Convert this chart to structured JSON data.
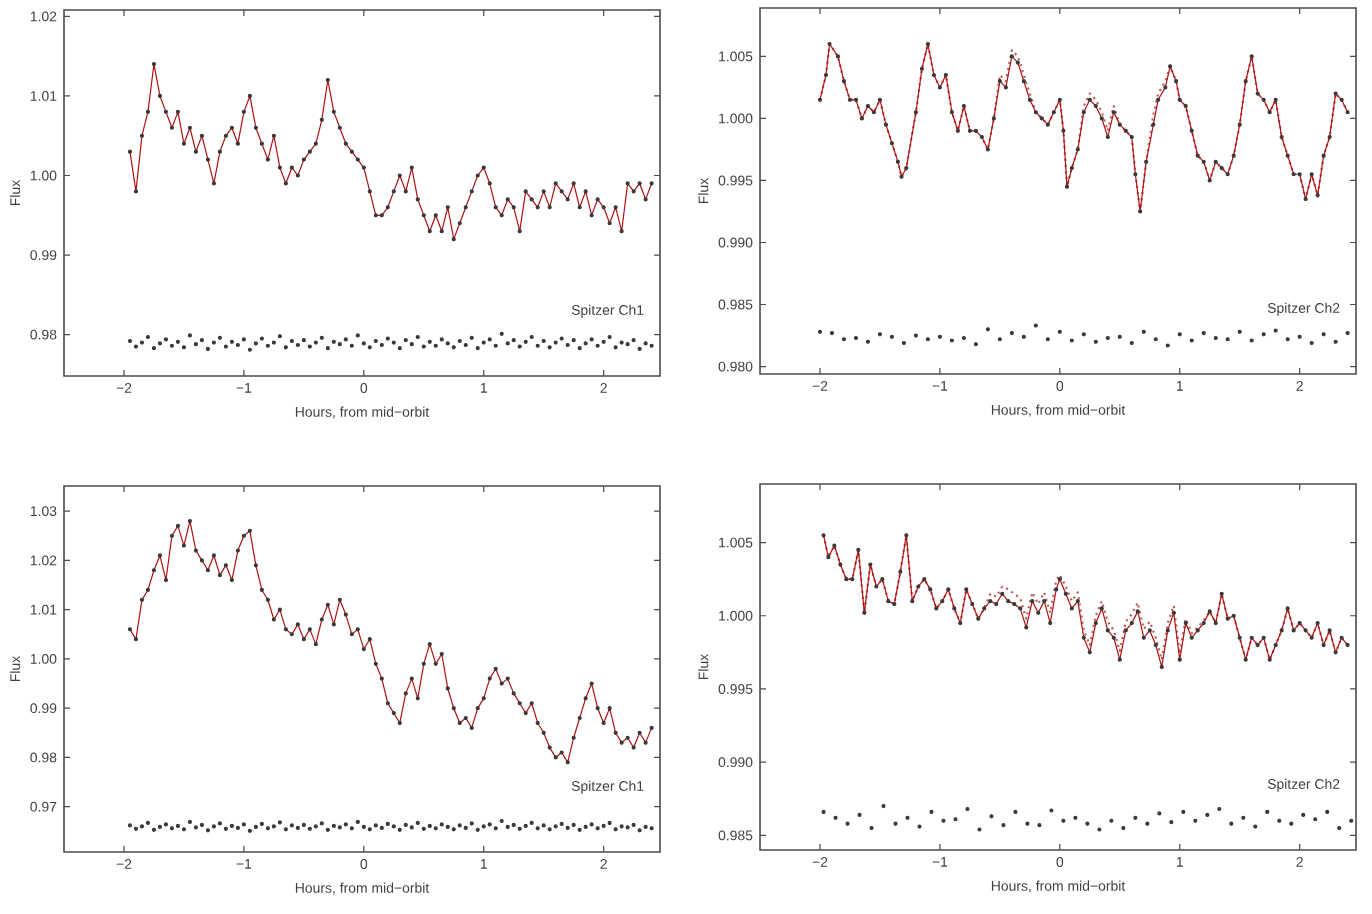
{
  "chart_data": [
    {
      "type": "scatter",
      "xlabel": "Hours, from mid−orbit",
      "ylabel": "Flux",
      "marker": "circle",
      "xlim": [
        -2.5,
        2.47
      ],
      "ylim": [
        0.9748,
        1.0208
      ],
      "xticks": [
        {
          "value": -2,
          "label": "−2"
        },
        {
          "value": -1,
          "label": "−1"
        },
        {
          "value": 0,
          "label": "0"
        },
        {
          "value": 1,
          "label": "1"
        },
        {
          "value": 2,
          "label": "2"
        }
      ],
      "yticks": [
        {
          "value": 0.98,
          "label": "0.98"
        },
        {
          "value": 0.99,
          "label": "0.99"
        },
        {
          "value": 1.0,
          "label": "1.00"
        },
        {
          "value": 1.01,
          "label": "1.01"
        },
        {
          "value": 1.02,
          "label": "1.02"
        }
      ],
      "annotations": [
        "Spitzer Ch1"
      ],
      "x": [
        -1.95,
        -1.9,
        -1.85,
        -1.8,
        -1.75,
        -1.7,
        -1.65,
        -1.6,
        -1.55,
        -1.5,
        -1.45,
        -1.4,
        -1.35,
        -1.3,
        -1.25,
        -1.2,
        -1.15,
        -1.1,
        -1.05,
        -1.0,
        -0.95,
        -0.9,
        -0.85,
        -0.8,
        -0.75,
        -0.7,
        -0.65,
        -0.6,
        -0.55,
        -0.5,
        -0.45,
        -0.4,
        -0.35,
        -0.3,
        -0.25,
        -0.2,
        -0.15,
        -0.1,
        -0.05,
        0.0,
        0.05,
        0.1,
        0.15,
        0.2,
        0.25,
        0.3,
        0.35,
        0.4,
        0.45,
        0.5,
        0.55,
        0.6,
        0.65,
        0.7,
        0.75,
        0.8,
        0.85,
        0.9,
        0.95,
        1.0,
        1.05,
        1.1,
        1.15,
        1.2,
        1.25,
        1.3,
        1.35,
        1.4,
        1.45,
        1.5,
        1.55,
        1.6,
        1.65,
        1.7,
        1.75,
        1.8,
        1.85,
        1.9,
        1.95,
        2.0,
        2.05,
        2.1,
        2.15,
        2.2,
        2.25,
        2.3,
        2.35,
        2.4
      ],
      "series": [
        {
          "type": "scatter",
          "color": "#3a3a3a",
          "values": [
            1.003,
            0.998,
            1.005,
            1.008,
            1.014,
            1.01,
            1.008,
            1.006,
            1.008,
            1.004,
            1.006,
            1.003,
            1.005,
            1.002,
            0.999,
            1.003,
            1.005,
            1.006,
            1.004,
            1.008,
            1.01,
            1.006,
            1.004,
            1.002,
            1.005,
            1.001,
            0.999,
            1.001,
            1.0,
            1.002,
            1.003,
            1.004,
            1.007,
            1.012,
            1.008,
            1.006,
            1.004,
            1.003,
            1.002,
            1.001,
            0.998,
            0.995,
            0.995,
            0.996,
            0.998,
            1.0,
            0.998,
            1.001,
            0.997,
            0.995,
            0.993,
            0.995,
            0.993,
            0.996,
            0.992,
            0.994,
            0.996,
            0.998,
            1.0,
            1.001,
            0.999,
            0.996,
            0.995,
            0.997,
            0.996,
            0.993,
            0.998,
            0.997,
            0.996,
            0.998,
            0.996,
            0.999,
            0.998,
            0.997,
            0.999,
            0.996,
            0.998,
            0.995,
            0.997,
            0.996,
            0.994,
            0.996,
            0.993,
            0.999,
            0.998,
            0.999,
            0.997,
            0.999
          ]
        },
        {
          "type": "line",
          "marker": "none",
          "color": "#b01010",
          "values": [
            1.003,
            0.998,
            1.005,
            1.008,
            1.014,
            1.01,
            1.008,
            1.006,
            1.008,
            1.004,
            1.006,
            1.003,
            1.005,
            1.002,
            0.999,
            1.003,
            1.005,
            1.006,
            1.004,
            1.008,
            1.01,
            1.006,
            1.004,
            1.002,
            1.005,
            1.001,
            0.999,
            1.001,
            1.0,
            1.002,
            1.003,
            1.004,
            1.007,
            1.012,
            1.008,
            1.006,
            1.004,
            1.003,
            1.002,
            1.001,
            0.998,
            0.995,
            0.995,
            0.996,
            0.998,
            1.0,
            0.998,
            1.001,
            0.997,
            0.995,
            0.993,
            0.995,
            0.993,
            0.996,
            0.992,
            0.994,
            0.996,
            0.998,
            1.0,
            1.001,
            0.999,
            0.996,
            0.995,
            0.997,
            0.996,
            0.993,
            0.998,
            0.997,
            0.996,
            0.998,
            0.996,
            0.999,
            0.998,
            0.997,
            0.999,
            0.996,
            0.998,
            0.995,
            0.997,
            0.996,
            0.994,
            0.996,
            0.993,
            0.999,
            0.998,
            0.999,
            0.997,
            0.999
          ]
        },
        {
          "type": "scatter",
          "color": "#3a3a3a",
          "values": [
            0.9792,
            0.9785,
            0.979,
            0.9797,
            0.9783,
            0.9789,
            0.9794,
            0.9786,
            0.9791,
            0.9784,
            0.9799,
            0.9788,
            0.9793,
            0.9782,
            0.979,
            0.9796,
            0.9785,
            0.9791,
            0.9787,
            0.9794,
            0.9781,
            0.9789,
            0.9795,
            0.9786,
            0.979,
            0.9798,
            0.9784,
            0.9792,
            0.9787,
            0.9793,
            0.9785,
            0.979,
            0.9796,
            0.9783,
            0.9791,
            0.9788,
            0.9794,
            0.9786,
            0.9799,
            0.9789,
            0.9784,
            0.9792,
            0.9787,
            0.9795,
            0.979,
            0.9783,
            0.9793,
            0.9788,
            0.9797,
            0.9785,
            0.9791,
            0.9786,
            0.9794,
            0.9789,
            0.9784,
            0.9792,
            0.9787,
            0.9796,
            0.9783,
            0.979,
            0.9794,
            0.9786,
            0.9801,
            0.9789,
            0.9793,
            0.9785,
            0.9791,
            0.9797,
            0.9786,
            0.9792,
            0.9784,
            0.979,
            0.9795,
            0.9787,
            0.9793,
            0.9783,
            0.9789,
            0.9794,
            0.9786,
            0.9791,
            0.9797,
            0.9784,
            0.979,
            0.9788,
            0.9793,
            0.9782,
            0.9789,
            0.9786
          ]
        }
      ]
    },
    {
      "type": "scatter",
      "xlabel": "Hours, from mid−orbit",
      "ylabel": "Flux",
      "marker": "circle",
      "xlim": [
        -2.5,
        2.47
      ],
      "ylim": [
        0.9794,
        1.0089
      ],
      "xticks": [
        {
          "value": -2,
          "label": "−2"
        },
        {
          "value": -1,
          "label": "−1"
        },
        {
          "value": 0,
          "label": "0"
        },
        {
          "value": 1,
          "label": "1"
        },
        {
          "value": 2,
          "label": "2"
        }
      ],
      "yticks": [
        {
          "value": 0.98,
          "label": "0.980"
        },
        {
          "value": 0.985,
          "label": "0.985"
        },
        {
          "value": 0.99,
          "label": "0.990"
        },
        {
          "value": 0.995,
          "label": "0.995"
        },
        {
          "value": 1.0,
          "label": "1.000"
        },
        {
          "value": 1.005,
          "label": "1.005"
        }
      ],
      "annotations": [
        "Spitzer Ch2"
      ],
      "x": [
        -2.0,
        -1.95,
        -1.92,
        -1.85,
        -1.8,
        -1.75,
        -1.7,
        -1.65,
        -1.6,
        -1.55,
        -1.5,
        -1.45,
        -1.4,
        -1.35,
        -1.32,
        -1.28,
        -1.2,
        -1.15,
        -1.1,
        -1.05,
        -1.0,
        -0.95,
        -0.9,
        -0.85,
        -0.8,
        -0.75,
        -0.7,
        -0.65,
        -0.6,
        -0.55,
        -0.5,
        -0.45,
        -0.4,
        -0.35,
        -0.3,
        -0.25,
        -0.2,
        -0.15,
        -0.1,
        -0.05,
        0.0,
        0.03,
        0.06,
        0.1,
        0.15,
        0.2,
        0.25,
        0.3,
        0.35,
        0.4,
        0.45,
        0.5,
        0.55,
        0.6,
        0.63,
        0.67,
        0.72,
        0.78,
        0.82,
        0.88,
        0.92,
        0.97,
        1.0,
        1.05,
        1.1,
        1.15,
        1.2,
        1.25,
        1.3,
        1.35,
        1.4,
        1.45,
        1.5,
        1.55,
        1.6,
        1.65,
        1.7,
        1.75,
        1.8,
        1.85,
        1.9,
        1.95,
        2.0,
        2.05,
        2.1,
        2.15,
        2.2,
        2.25,
        2.3,
        2.35,
        2.4
      ],
      "series": [
        {
          "type": "line",
          "marker": "none",
          "line_style": "dotted",
          "color": "#c06060",
          "values": [
            1.0015,
            1.0035,
            1.006,
            1.005,
            1.003,
            1.0015,
            1.0015,
            1.0,
            1.001,
            1.0005,
            1.0015,
            0.9995,
            0.998,
            0.9965,
            0.9953,
            0.996,
            1.0005,
            1.004,
            1.006,
            1.0035,
            1.0025,
            1.0035,
            1.0005,
            0.999,
            1.001,
            0.999,
            0.999,
            0.9985,
            0.9975,
            1.0,
            1.0035,
            1.003,
            1.0055,
            1.005,
            1.0035,
            1.002,
            1.0005,
            1.0,
            0.9995,
            1.0005,
            1.0015,
            0.999,
            0.9945,
            0.996,
            0.9975,
            1.001,
            1.002,
            1.0015,
            1.0005,
            0.999,
            1.001,
            0.9995,
            0.999,
            0.9985,
            0.9955,
            0.9925,
            0.9965,
            1.0003,
            1.002,
            1.003,
            1.0042,
            1.003,
            1.0015,
            1.001,
            0.999,
            0.997,
            0.9965,
            0.995,
            0.9965,
            0.996,
            0.9955,
            0.997,
            0.9995,
            1.003,
            1.005,
            1.002,
            1.0015,
            1.0005,
            1.0015,
            0.9985,
            0.997,
            0.9955,
            0.9955,
            0.9935,
            0.9955,
            0.9938,
            0.997,
            0.9985,
            1.002,
            1.0015,
            1.0005
          ]
        },
        {
          "type": "scatter",
          "color": "#3a3a3a",
          "values": [
            1.0015,
            1.0035,
            1.006,
            1.005,
            1.003,
            1.0015,
            1.0015,
            1.0,
            1.001,
            1.0005,
            1.0015,
            0.9995,
            0.998,
            0.9965,
            0.9953,
            0.996,
            1.0005,
            1.004,
            1.006,
            1.0035,
            1.0025,
            1.0035,
            1.0005,
            0.999,
            1.001,
            0.999,
            0.999,
            0.9985,
            0.9975,
            1.0,
            1.003,
            1.0025,
            1.005,
            1.0045,
            1.003,
            1.0015,
            1.0005,
            1.0,
            0.9995,
            1.0005,
            1.0015,
            0.999,
            0.9945,
            0.996,
            0.9975,
            1.0005,
            1.0015,
            1.001,
            1.0,
            0.9985,
            1.0005,
            0.9995,
            0.999,
            0.9985,
            0.9955,
            0.9925,
            0.9965,
            0.9995,
            1.0015,
            1.0025,
            1.0042,
            1.003,
            1.0015,
            1.001,
            0.999,
            0.997,
            0.9965,
            0.995,
            0.9965,
            0.996,
            0.9955,
            0.997,
            0.9995,
            1.003,
            1.005,
            1.002,
            1.0015,
            1.0005,
            1.0015,
            0.9985,
            0.997,
            0.9955,
            0.9955,
            0.9935,
            0.9955,
            0.9938,
            0.997,
            0.9985,
            1.002,
            1.0015,
            1.0005
          ]
        },
        {
          "type": "line",
          "marker": "none",
          "color": "#b01010",
          "values": [
            1.0015,
            1.0035,
            1.006,
            1.005,
            1.003,
            1.0015,
            1.0015,
            1.0,
            1.001,
            1.0005,
            1.0015,
            0.9995,
            0.998,
            0.9965,
            0.9953,
            0.996,
            1.0005,
            1.004,
            1.006,
            1.0035,
            1.0025,
            1.0035,
            1.0005,
            0.999,
            1.001,
            0.999,
            0.999,
            0.9985,
            0.9975,
            1.0,
            1.003,
            1.0025,
            1.005,
            1.0045,
            1.003,
            1.0015,
            1.0005,
            1.0,
            0.9995,
            1.0005,
            1.0015,
            0.999,
            0.9945,
            0.996,
            0.9975,
            1.0005,
            1.0015,
            1.001,
            1.0,
            0.9985,
            1.0005,
            0.9995,
            0.999,
            0.9985,
            0.9955,
            0.9925,
            0.9965,
            0.9995,
            1.0015,
            1.0025,
            1.0042,
            1.003,
            1.0015,
            1.001,
            0.999,
            0.997,
            0.9965,
            0.995,
            0.9965,
            0.996,
            0.9955,
            0.997,
            0.9995,
            1.003,
            1.005,
            1.002,
            1.0015,
            1.0005,
            1.0015,
            0.9985,
            0.997,
            0.9955,
            0.9955,
            0.9935,
            0.9955,
            0.9938,
            0.997,
            0.9985,
            1.002,
            1.0015,
            1.0005
          ]
        },
        {
          "type": "scatter",
          "color": "#3a3a3a",
          "x": [
            -2.0,
            -1.9,
            -1.8,
            -1.7,
            -1.6,
            -1.5,
            -1.4,
            -1.3,
            -1.2,
            -1.1,
            -1.0,
            -0.9,
            -0.8,
            -0.7,
            -0.6,
            -0.5,
            -0.4,
            -0.3,
            -0.2,
            -0.1,
            0.0,
            0.1,
            0.2,
            0.3,
            0.4,
            0.5,
            0.6,
            0.7,
            0.8,
            0.9,
            1.0,
            1.1,
            1.2,
            1.3,
            1.4,
            1.5,
            1.6,
            1.7,
            1.8,
            1.9,
            2.0,
            2.1,
            2.2,
            2.3,
            2.4
          ],
          "values": [
            0.9828,
            0.9827,
            0.9822,
            0.9823,
            0.982,
            0.9826,
            0.9824,
            0.9819,
            0.9825,
            0.9822,
            0.9824,
            0.9821,
            0.9823,
            0.9818,
            0.983,
            0.9822,
            0.9827,
            0.9824,
            0.9833,
            0.9822,
            0.9828,
            0.9821,
            0.9826,
            0.982,
            0.9823,
            0.9824,
            0.9819,
            0.9828,
            0.9822,
            0.9817,
            0.9826,
            0.9821,
            0.9827,
            0.9823,
            0.9822,
            0.9828,
            0.9821,
            0.9826,
            0.9829,
            0.9822,
            0.9824,
            0.9819,
            0.9826,
            0.982,
            0.9827
          ]
        }
      ]
    },
    {
      "type": "scatter",
      "xlabel": "Hours, from mid−orbit",
      "ylabel": "Flux",
      "marker": "circle",
      "xlim": [
        -2.5,
        2.47
      ],
      "ylim": [
        0.9608,
        1.0351
      ],
      "xticks": [
        {
          "value": -2,
          "label": "−2"
        },
        {
          "value": -1,
          "label": "−1"
        },
        {
          "value": 0,
          "label": "0"
        },
        {
          "value": 1,
          "label": "1"
        },
        {
          "value": 2,
          "label": "2"
        }
      ],
      "yticks": [
        {
          "value": 0.97,
          "label": "0.97"
        },
        {
          "value": 0.98,
          "label": "0.98"
        },
        {
          "value": 0.99,
          "label": "0.99"
        },
        {
          "value": 1.0,
          "label": "1.00"
        },
        {
          "value": 1.01,
          "label": "1.01"
        },
        {
          "value": 1.02,
          "label": "1.02"
        },
        {
          "value": 1.03,
          "label": "1.03"
        }
      ],
      "annotations": [
        "Spitzer Ch1"
      ],
      "x": [
        -1.95,
        -1.9,
        -1.85,
        -1.8,
        -1.75,
        -1.7,
        -1.65,
        -1.6,
        -1.55,
        -1.5,
        -1.45,
        -1.4,
        -1.35,
        -1.3,
        -1.25,
        -1.2,
        -1.15,
        -1.1,
        -1.05,
        -1.0,
        -0.95,
        -0.9,
        -0.85,
        -0.8,
        -0.75,
        -0.7,
        -0.65,
        -0.6,
        -0.55,
        -0.5,
        -0.45,
        -0.4,
        -0.35,
        -0.3,
        -0.25,
        -0.2,
        -0.15,
        -0.1,
        -0.05,
        0.0,
        0.05,
        0.1,
        0.15,
        0.2,
        0.25,
        0.3,
        0.35,
        0.4,
        0.45,
        0.5,
        0.55,
        0.6,
        0.65,
        0.7,
        0.75,
        0.8,
        0.85,
        0.9,
        0.95,
        1.0,
        1.05,
        1.1,
        1.15,
        1.2,
        1.25,
        1.3,
        1.35,
        1.4,
        1.45,
        1.5,
        1.55,
        1.6,
        1.65,
        1.7,
        1.75,
        1.8,
        1.85,
        1.9,
        1.95,
        2.0,
        2.05,
        2.1,
        2.15,
        2.2,
        2.25,
        2.3,
        2.35,
        2.4
      ],
      "series": [
        {
          "type": "scatter",
          "color": "#3a3a3a",
          "values": [
            1.006,
            1.004,
            1.012,
            1.014,
            1.018,
            1.021,
            1.016,
            1.025,
            1.027,
            1.023,
            1.028,
            1.022,
            1.02,
            1.018,
            1.021,
            1.017,
            1.019,
            1.016,
            1.022,
            1.025,
            1.026,
            1.019,
            1.014,
            1.012,
            1.008,
            1.01,
            1.006,
            1.005,
            1.007,
            1.004,
            1.006,
            1.003,
            1.008,
            1.011,
            1.007,
            1.012,
            1.009,
            1.005,
            1.006,
            1.002,
            1.004,
            0.999,
            0.996,
            0.991,
            0.989,
            0.987,
            0.993,
            0.996,
            0.992,
            0.999,
            1.003,
            0.999,
            1.001,
            0.994,
            0.99,
            0.987,
            0.988,
            0.986,
            0.99,
            0.992,
            0.996,
            0.998,
            0.995,
            0.996,
            0.993,
            0.991,
            0.989,
            0.991,
            0.987,
            0.985,
            0.982,
            0.98,
            0.981,
            0.979,
            0.984,
            0.988,
            0.992,
            0.995,
            0.99,
            0.987,
            0.99,
            0.985,
            0.983,
            0.984,
            0.982,
            0.985,
            0.983,
            0.986
          ]
        },
        {
          "type": "line",
          "marker": "none",
          "color": "#b01010",
          "values": [
            1.006,
            1.004,
            1.012,
            1.014,
            1.018,
            1.021,
            1.016,
            1.025,
            1.027,
            1.023,
            1.028,
            1.022,
            1.02,
            1.018,
            1.021,
            1.017,
            1.019,
            1.016,
            1.022,
            1.025,
            1.026,
            1.019,
            1.014,
            1.012,
            1.008,
            1.01,
            1.006,
            1.005,
            1.007,
            1.004,
            1.006,
            1.003,
            1.008,
            1.011,
            1.007,
            1.012,
            1.009,
            1.005,
            1.006,
            1.002,
            1.004,
            0.999,
            0.996,
            0.991,
            0.989,
            0.987,
            0.993,
            0.996,
            0.992,
            0.999,
            1.003,
            0.999,
            1.001,
            0.994,
            0.99,
            0.987,
            0.988,
            0.986,
            0.99,
            0.992,
            0.996,
            0.998,
            0.995,
            0.996,
            0.993,
            0.991,
            0.989,
            0.991,
            0.987,
            0.985,
            0.982,
            0.98,
            0.981,
            0.979,
            0.984,
            0.988,
            0.992,
            0.995,
            0.99,
            0.987,
            0.99,
            0.985,
            0.983,
            0.984,
            0.982,
            0.985,
            0.983,
            0.986
          ]
        },
        {
          "type": "scatter",
          "color": "#3a3a3a",
          "values": [
            0.9662,
            0.9655,
            0.966,
            0.9667,
            0.9653,
            0.9659,
            0.9664,
            0.9656,
            0.9661,
            0.9654,
            0.9669,
            0.9658,
            0.9663,
            0.9652,
            0.966,
            0.9666,
            0.9655,
            0.9661,
            0.9657,
            0.9664,
            0.9651,
            0.9659,
            0.9665,
            0.9656,
            0.966,
            0.9668,
            0.9654,
            0.9662,
            0.9657,
            0.9663,
            0.9655,
            0.966,
            0.9666,
            0.9653,
            0.9661,
            0.9658,
            0.9664,
            0.9656,
            0.9669,
            0.9659,
            0.9654,
            0.9662,
            0.9657,
            0.9665,
            0.966,
            0.9653,
            0.9663,
            0.9658,
            0.9667,
            0.9655,
            0.9661,
            0.9656,
            0.9664,
            0.9659,
            0.9654,
            0.9662,
            0.9657,
            0.9666,
            0.9653,
            0.966,
            0.9664,
            0.9656,
            0.9671,
            0.9659,
            0.9663,
            0.9655,
            0.9661,
            0.9667,
            0.9656,
            0.9662,
            0.9654,
            0.966,
            0.9665,
            0.9657,
            0.9663,
            0.9653,
            0.9659,
            0.9664,
            0.9656,
            0.9661,
            0.9667,
            0.9654,
            0.966,
            0.9658,
            0.9663,
            0.9652,
            0.9659,
            0.9656
          ]
        }
      ]
    },
    {
      "type": "scatter",
      "xlabel": "Hours, from mid−orbit",
      "ylabel": "Flux",
      "marker": "circle",
      "xlim": [
        -2.5,
        2.47
      ],
      "ylim": [
        0.984,
        1.009
      ],
      "xticks": [
        {
          "value": -2,
          "label": "−2"
        },
        {
          "value": -1,
          "label": "−1"
        },
        {
          "value": 0,
          "label": "0"
        },
        {
          "value": 1,
          "label": "1"
        },
        {
          "value": 2,
          "label": "2"
        }
      ],
      "yticks": [
        {
          "value": 0.985,
          "label": "0.985"
        },
        {
          "value": 0.99,
          "label": "0.990"
        },
        {
          "value": 0.995,
          "label": "0.995"
        },
        {
          "value": 1.0,
          "label": "1.000"
        },
        {
          "value": 1.005,
          "label": "1.005"
        }
      ],
      "annotations": [
        "Spitzer Ch2"
      ],
      "x": [
        -1.97,
        -1.93,
        -1.88,
        -1.83,
        -1.78,
        -1.73,
        -1.68,
        -1.63,
        -1.58,
        -1.53,
        -1.48,
        -1.43,
        -1.38,
        -1.33,
        -1.28,
        -1.23,
        -1.18,
        -1.13,
        -1.08,
        -1.03,
        -0.98,
        -0.93,
        -0.88,
        -0.83,
        -0.78,
        -0.73,
        -0.68,
        -0.63,
        -0.58,
        -0.53,
        -0.48,
        -0.43,
        -0.38,
        -0.33,
        -0.28,
        -0.23,
        -0.18,
        -0.13,
        -0.08,
        -0.03,
        0.0,
        0.05,
        0.1,
        0.15,
        0.2,
        0.25,
        0.3,
        0.35,
        0.4,
        0.45,
        0.5,
        0.55,
        0.6,
        0.65,
        0.7,
        0.75,
        0.8,
        0.85,
        0.9,
        0.95,
        1.0,
        1.05,
        1.1,
        1.15,
        1.2,
        1.25,
        1.3,
        1.35,
        1.4,
        1.45,
        1.5,
        1.55,
        1.6,
        1.65,
        1.7,
        1.75,
        1.8,
        1.85,
        1.9,
        1.95,
        2.0,
        2.05,
        2.1,
        2.15,
        2.2,
        2.25,
        2.3,
        2.35,
        2.4
      ],
      "series": [
        {
          "type": "line",
          "marker": "none",
          "line_style": "dotted",
          "color": "#c06060",
          "values": [
            1.0055,
            1.004,
            1.0048,
            1.0035,
            1.0025,
            1.0025,
            1.0045,
            1.0002,
            1.0035,
            1.002,
            1.0025,
            1.001,
            1.0008,
            1.003,
            1.0055,
            1.001,
            1.002,
            1.0025,
            1.0018,
            1.0005,
            1.001,
            1.0018,
            1.0005,
            0.9995,
            1.0018,
            1.0008,
            0.9998,
            1.0005,
            1.0015,
            1.0013,
            1.002,
            1.0018,
            1.0015,
            1.0012,
            0.9998,
            1.0016,
            1.0008,
            1.0016,
            1.0002,
            1.0024,
            1.0028,
            1.002,
            1.001,
            1.0016,
            0.999,
            0.998,
            1.0,
            1.001,
            0.9996,
            0.999,
            0.9976,
            0.9996,
            1.0001,
            1.0009,
            0.9991,
            0.9996,
            0.9985,
            0.997,
            0.9995,
            1.0007,
            0.9974,
            0.9998,
            0.9988,
            0.9992,
            0.9997,
            1.0003,
            0.9995,
            1.0015,
            0.9998,
            1.0,
            0.9985,
            0.997,
            0.9985,
            0.998,
            0.9985,
            0.997,
            0.998,
            0.999,
            1.0005,
            0.999,
            0.9995,
            0.999,
            0.9985,
            0.9995,
            0.998,
            0.999,
            0.9975,
            0.9985,
            0.998
          ]
        },
        {
          "type": "scatter",
          "color": "#3a3a3a",
          "values": [
            1.0055,
            1.004,
            1.0048,
            1.0035,
            1.0025,
            1.0025,
            1.0045,
            1.0002,
            1.0035,
            1.002,
            1.0025,
            1.001,
            1.0008,
            1.003,
            1.0055,
            1.001,
            1.002,
            1.0025,
            1.0018,
            1.0005,
            1.001,
            1.0018,
            1.0005,
            0.9995,
            1.0018,
            1.0008,
            0.9998,
            1.0005,
            1.001,
            1.0008,
            1.0015,
            1.001,
            1.0008,
            1.0005,
            0.9992,
            1.001,
            1.0002,
            1.001,
            0.9995,
            1.0018,
            1.0025,
            1.0015,
            1.0005,
            1.001,
            0.9985,
            0.9975,
            0.9995,
            1.0005,
            0.999,
            0.9985,
            0.997,
            0.999,
            0.9995,
            1.0003,
            0.9985,
            0.999,
            0.998,
            0.9965,
            0.999,
            1.0002,
            0.997,
            0.9995,
            0.9985,
            0.999,
            0.9995,
            1.0003,
            0.9995,
            1.0015,
            0.9998,
            1.0,
            0.9985,
            0.997,
            0.9985,
            0.998,
            0.9985,
            0.997,
            0.998,
            0.999,
            1.0005,
            0.999,
            0.9995,
            0.999,
            0.9985,
            0.9995,
            0.998,
            0.999,
            0.9975,
            0.9985,
            0.998
          ]
        },
        {
          "type": "line",
          "marker": "none",
          "color": "#b01010",
          "values": [
            1.0055,
            1.004,
            1.0048,
            1.0035,
            1.0025,
            1.0025,
            1.0045,
            1.0002,
            1.0035,
            1.002,
            1.0025,
            1.001,
            1.0008,
            1.003,
            1.0055,
            1.001,
            1.002,
            1.0025,
            1.0018,
            1.0005,
            1.001,
            1.0018,
            1.0005,
            0.9995,
            1.0018,
            1.0008,
            0.9998,
            1.0005,
            1.001,
            1.0008,
            1.0015,
            1.001,
            1.0008,
            1.0005,
            0.9992,
            1.001,
            1.0002,
            1.001,
            0.9995,
            1.0018,
            1.0025,
            1.0015,
            1.0005,
            1.001,
            0.9985,
            0.9975,
            0.9995,
            1.0005,
            0.999,
            0.9985,
            0.997,
            0.999,
            0.9995,
            1.0003,
            0.9985,
            0.999,
            0.998,
            0.9965,
            0.999,
            1.0002,
            0.997,
            0.9995,
            0.9985,
            0.999,
            0.9995,
            1.0003,
            0.9995,
            1.0015,
            0.9998,
            1.0,
            0.9985,
            0.997,
            0.9985,
            0.998,
            0.9985,
            0.997,
            0.998,
            0.999,
            1.0005,
            0.999,
            0.9995,
            0.999,
            0.9985,
            0.9995,
            0.998,
            0.999,
            0.9975,
            0.9985,
            0.998
          ]
        },
        {
          "type": "scatter",
          "color": "#3a3a3a",
          "x": [
            -1.97,
            -1.87,
            -1.77,
            -1.67,
            -1.57,
            -1.47,
            -1.37,
            -1.27,
            -1.17,
            -1.07,
            -0.97,
            -0.87,
            -0.77,
            -0.67,
            -0.57,
            -0.47,
            -0.37,
            -0.27,
            -0.17,
            -0.07,
            0.03,
            0.13,
            0.23,
            0.33,
            0.43,
            0.53,
            0.63,
            0.73,
            0.83,
            0.93,
            1.03,
            1.13,
            1.23,
            1.33,
            1.43,
            1.53,
            1.63,
            1.73,
            1.83,
            1.93,
            2.03,
            2.13,
            2.23,
            2.33,
            2.43
          ],
          "values": [
            0.9866,
            0.9862,
            0.9858,
            0.9864,
            0.9855,
            0.987,
            0.9858,
            0.9862,
            0.9856,
            0.9866,
            0.986,
            0.9861,
            0.9868,
            0.9854,
            0.9863,
            0.9857,
            0.9866,
            0.9858,
            0.9857,
            0.9867,
            0.986,
            0.9862,
            0.9858,
            0.9854,
            0.986,
            0.9855,
            0.9862,
            0.9858,
            0.9865,
            0.9859,
            0.9866,
            0.986,
            0.9864,
            0.9868,
            0.9858,
            0.9862,
            0.9856,
            0.9866,
            0.986,
            0.9858,
            0.9864,
            0.9861,
            0.9866,
            0.9855,
            0.986
          ]
        }
      ]
    }
  ]
}
